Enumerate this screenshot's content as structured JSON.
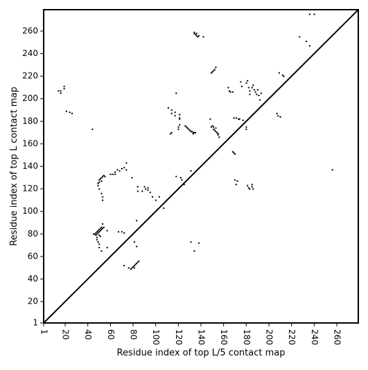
{
  "chart_data": {
    "type": "scatter",
    "title": "",
    "xlabel": "Residue index of top L/5 contact map",
    "ylabel": "Residue index of top L contact map",
    "xlim": [
      1,
      279
    ],
    "ylim": [
      1,
      279
    ],
    "x_ticks": [
      1,
      20,
      40,
      60,
      80,
      100,
      120,
      140,
      160,
      180,
      200,
      220,
      240,
      260
    ],
    "y_ticks": [
      1,
      20,
      40,
      60,
      80,
      100,
      120,
      140,
      160,
      180,
      200,
      220,
      240,
      260
    ],
    "x_tick_rotation": -90,
    "grid": false,
    "legend": "none",
    "marker_color": "#000000",
    "diagonal": {
      "from": [
        1,
        1
      ],
      "to": [
        279,
        279
      ],
      "color": "#000000"
    },
    "series": [
      {
        "region": "upper-left (top L)",
        "points": [
          [
            14,
            207
          ],
          [
            16,
            207
          ],
          [
            16,
            205
          ],
          [
            19,
            209
          ],
          [
            19,
            211
          ],
          [
            21,
            189
          ],
          [
            24,
            188
          ],
          [
            26,
            187
          ],
          [
            44,
            173
          ],
          [
            111,
            192
          ],
          [
            114,
            190
          ],
          [
            114,
            187
          ],
          [
            117,
            188
          ],
          [
            117,
            185
          ],
          [
            118,
            205
          ],
          [
            121,
            186
          ],
          [
            121,
            183
          ],
          [
            121,
            182
          ],
          [
            121,
            177
          ],
          [
            120,
            175
          ],
          [
            120,
            173
          ],
          [
            126,
            176
          ],
          [
            127,
            175
          ],
          [
            128,
            174
          ],
          [
            129,
            173
          ],
          [
            130,
            172
          ],
          [
            131,
            171
          ],
          [
            132,
            171
          ],
          [
            133,
            170
          ],
          [
            134,
            170
          ],
          [
            133,
            169
          ],
          [
            135,
            170
          ],
          [
            114,
            170
          ],
          [
            113,
            169
          ],
          [
            134,
            258
          ],
          [
            135,
            257
          ],
          [
            136,
            256
          ],
          [
            137,
            255
          ],
          [
            138,
            256
          ],
          [
            136,
            258
          ],
          [
            134,
            259
          ],
          [
            142,
            255
          ],
          [
            149,
            223
          ],
          [
            150,
            224
          ],
          [
            151,
            225
          ],
          [
            152,
            226
          ],
          [
            153,
            228
          ],
          [
            150,
            176
          ],
          [
            151,
            175
          ],
          [
            151,
            173
          ],
          [
            152,
            172
          ],
          [
            153,
            171
          ],
          [
            154,
            170
          ],
          [
            155,
            169
          ],
          [
            155,
            168
          ],
          [
            156,
            166
          ],
          [
            153,
            174
          ],
          [
            149,
            175
          ],
          [
            148,
            182
          ],
          [
            164,
            210
          ],
          [
            165,
            207
          ],
          [
            166,
            206
          ],
          [
            168,
            206
          ],
          [
            169,
            183
          ],
          [
            171,
            183
          ],
          [
            173,
            182
          ],
          [
            174,
            182
          ],
          [
            177,
            181
          ],
          [
            180,
            173
          ],
          [
            180,
            175
          ],
          [
            175,
            215
          ],
          [
            176,
            211
          ],
          [
            180,
            214
          ],
          [
            181,
            216
          ],
          [
            182,
            210
          ],
          [
            183,
            207
          ],
          [
            183,
            204
          ],
          [
            185,
            210
          ],
          [
            186,
            212
          ],
          [
            187,
            208
          ],
          [
            188,
            206
          ],
          [
            189,
            204
          ],
          [
            190,
            208
          ],
          [
            191,
            203
          ],
          [
            192,
            199
          ],
          [
            193,
            205
          ],
          [
            207,
            187
          ],
          [
            208,
            185
          ],
          [
            210,
            184
          ],
          [
            209,
            223
          ],
          [
            212,
            221
          ],
          [
            213,
            220
          ],
          [
            227,
            255
          ],
          [
            233,
            251
          ],
          [
            236,
            247
          ],
          [
            236,
            275
          ],
          [
            240,
            275
          ]
        ]
      },
      {
        "region": "lower-right (top L/5)",
        "points": [
          [
            45,
            80
          ],
          [
            46,
            80
          ],
          [
            47,
            81
          ],
          [
            47,
            79
          ],
          [
            48,
            82
          ],
          [
            48,
            80
          ],
          [
            49,
            83
          ],
          [
            49,
            81
          ],
          [
            50,
            84
          ],
          [
            50,
            82
          ],
          [
            51,
            85
          ],
          [
            51,
            83
          ],
          [
            52,
            86
          ],
          [
            52,
            84
          ],
          [
            53,
            85
          ],
          [
            54,
            86
          ],
          [
            50,
            79
          ],
          [
            51,
            78
          ],
          [
            48,
            77
          ],
          [
            48,
            75
          ],
          [
            49,
            73
          ],
          [
            50,
            71
          ],
          [
            50,
            68
          ],
          [
            52,
            65
          ],
          [
            53,
            89
          ],
          [
            57,
            83
          ],
          [
            57,
            68
          ],
          [
            49,
            123
          ],
          [
            49,
            125
          ],
          [
            50,
            126
          ],
          [
            50,
            128
          ],
          [
            51,
            129
          ],
          [
            52,
            130
          ],
          [
            53,
            131
          ],
          [
            54,
            132
          ],
          [
            55,
            131
          ],
          [
            52,
            127
          ],
          [
            50,
            120
          ],
          [
            52,
            116
          ],
          [
            53,
            113
          ],
          [
            53,
            110
          ],
          [
            60,
            133
          ],
          [
            62,
            133
          ],
          [
            64,
            135
          ],
          [
            64,
            133
          ],
          [
            66,
            137
          ],
          [
            68,
            136
          ],
          [
            70,
            138
          ],
          [
            72,
            139
          ],
          [
            74,
            137
          ],
          [
            74,
            143
          ],
          [
            79,
            130
          ],
          [
            67,
            82
          ],
          [
            70,
            82
          ],
          [
            72,
            81
          ],
          [
            72,
            52
          ],
          [
            76,
            50
          ],
          [
            78,
            49
          ],
          [
            79,
            50
          ],
          [
            80,
            51
          ],
          [
            81,
            52
          ],
          [
            82,
            53
          ],
          [
            83,
            54
          ],
          [
            84,
            55
          ],
          [
            85,
            56
          ],
          [
            81,
            50
          ],
          [
            81,
            73
          ],
          [
            83,
            69
          ],
          [
            83,
            92
          ],
          [
            84,
            122
          ],
          [
            84,
            118
          ],
          [
            88,
            118
          ],
          [
            90,
            122
          ],
          [
            91,
            120
          ],
          [
            93,
            121
          ],
          [
            93,
            119
          ],
          [
            95,
            117
          ],
          [
            97,
            113
          ],
          [
            100,
            110
          ],
          [
            103,
            113
          ],
          [
            107,
            103
          ],
          [
            118,
            131
          ],
          [
            122,
            130
          ],
          [
            123,
            128
          ],
          [
            125,
            124
          ],
          [
            131,
            136
          ],
          [
            131,
            73
          ],
          [
            134,
            65
          ],
          [
            138,
            72
          ],
          [
            168,
            153
          ],
          [
            169,
            152
          ],
          [
            170,
            151
          ],
          [
            170,
            128
          ],
          [
            172,
            127
          ],
          [
            171,
            124
          ],
          [
            181,
            123
          ],
          [
            182,
            121
          ],
          [
            183,
            120
          ],
          [
            185,
            122
          ],
          [
            185,
            124
          ],
          [
            186,
            120
          ],
          [
            256,
            137
          ]
        ]
      }
    ]
  }
}
